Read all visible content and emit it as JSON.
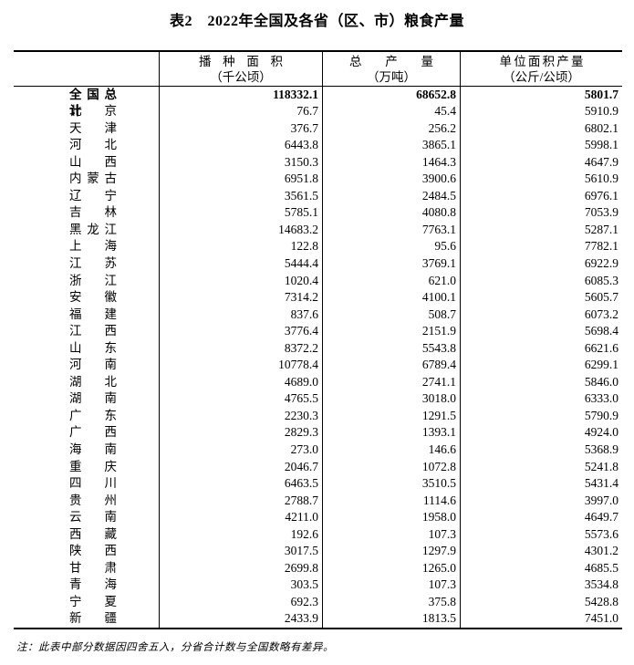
{
  "title": "表2　2022年全国及各省（区、市）粮食产量",
  "table": {
    "columns": [
      {
        "line1": "",
        "line2": ""
      },
      {
        "line1": "播种面积",
        "line2": "（千公顷）"
      },
      {
        "line1": "总产量",
        "line2": "（万吨）"
      },
      {
        "line1": "单位面积产量",
        "line2": "（公斤/公顷）"
      }
    ],
    "rows": [
      {
        "name": "全国总计",
        "sown_area": "118332.1",
        "output": "68652.8",
        "yield": "5801.7",
        "bold": true
      },
      {
        "name": "北京",
        "sown_area": "76.7",
        "output": "45.4",
        "yield": "5910.9"
      },
      {
        "name": "天津",
        "sown_area": "376.7",
        "output": "256.2",
        "yield": "6802.1"
      },
      {
        "name": "河北",
        "sown_area": "6443.8",
        "output": "3865.1",
        "yield": "5998.1"
      },
      {
        "name": "山西",
        "sown_area": "3150.3",
        "output": "1464.3",
        "yield": "4647.9"
      },
      {
        "name": "内蒙古",
        "sown_area": "6951.8",
        "output": "3900.6",
        "yield": "5610.9"
      },
      {
        "name": "辽宁",
        "sown_area": "3561.5",
        "output": "2484.5",
        "yield": "6976.1"
      },
      {
        "name": "吉林",
        "sown_area": "5785.1",
        "output": "4080.8",
        "yield": "7053.9"
      },
      {
        "name": "黑龙江",
        "sown_area": "14683.2",
        "output": "7763.1",
        "yield": "5287.1"
      },
      {
        "name": "上海",
        "sown_area": "122.8",
        "output": "95.6",
        "yield": "7782.1"
      },
      {
        "name": "江苏",
        "sown_area": "5444.4",
        "output": "3769.1",
        "yield": "6922.9"
      },
      {
        "name": "浙江",
        "sown_area": "1020.4",
        "output": "621.0",
        "yield": "6085.3"
      },
      {
        "name": "安徽",
        "sown_area": "7314.2",
        "output": "4100.1",
        "yield": "5605.7"
      },
      {
        "name": "福建",
        "sown_area": "837.6",
        "output": "508.7",
        "yield": "6073.2"
      },
      {
        "name": "江西",
        "sown_area": "3776.4",
        "output": "2151.9",
        "yield": "5698.4"
      },
      {
        "name": "山东",
        "sown_area": "8372.2",
        "output": "5543.8",
        "yield": "6621.6"
      },
      {
        "name": "河南",
        "sown_area": "10778.4",
        "output": "6789.4",
        "yield": "6299.1"
      },
      {
        "name": "湖北",
        "sown_area": "4689.0",
        "output": "2741.1",
        "yield": "5846.0"
      },
      {
        "name": "湖南",
        "sown_area": "4765.5",
        "output": "3018.0",
        "yield": "6333.0"
      },
      {
        "name": "广东",
        "sown_area": "2230.3",
        "output": "1291.5",
        "yield": "5790.9"
      },
      {
        "name": "广西",
        "sown_area": "2829.3",
        "output": "1393.1",
        "yield": "4924.0"
      },
      {
        "name": "海南",
        "sown_area": "273.0",
        "output": "146.6",
        "yield": "5368.9"
      },
      {
        "name": "重庆",
        "sown_area": "2046.7",
        "output": "1072.8",
        "yield": "5241.8"
      },
      {
        "name": "四川",
        "sown_area": "6463.5",
        "output": "3510.5",
        "yield": "5431.4"
      },
      {
        "name": "贵州",
        "sown_area": "2788.7",
        "output": "1114.6",
        "yield": "3997.0"
      },
      {
        "name": "云南",
        "sown_area": "4211.0",
        "output": "1958.0",
        "yield": "4649.7"
      },
      {
        "name": "西藏",
        "sown_area": "192.6",
        "output": "107.3",
        "yield": "5573.6"
      },
      {
        "name": "陕西",
        "sown_area": "3017.5",
        "output": "1297.9",
        "yield": "4301.2"
      },
      {
        "name": "甘肃",
        "sown_area": "2699.8",
        "output": "1265.0",
        "yield": "4685.5"
      },
      {
        "name": "青海",
        "sown_area": "303.5",
        "output": "107.3",
        "yield": "3534.8"
      },
      {
        "name": "宁夏",
        "sown_area": "692.3",
        "output": "375.8",
        "yield": "5428.8"
      },
      {
        "name": "新疆",
        "sown_area": "2433.9",
        "output": "1813.5",
        "yield": "7451.0"
      }
    ]
  },
  "note": "注：此表中部分数据因四舍五入，分省合计数与全国数略有差异。"
}
